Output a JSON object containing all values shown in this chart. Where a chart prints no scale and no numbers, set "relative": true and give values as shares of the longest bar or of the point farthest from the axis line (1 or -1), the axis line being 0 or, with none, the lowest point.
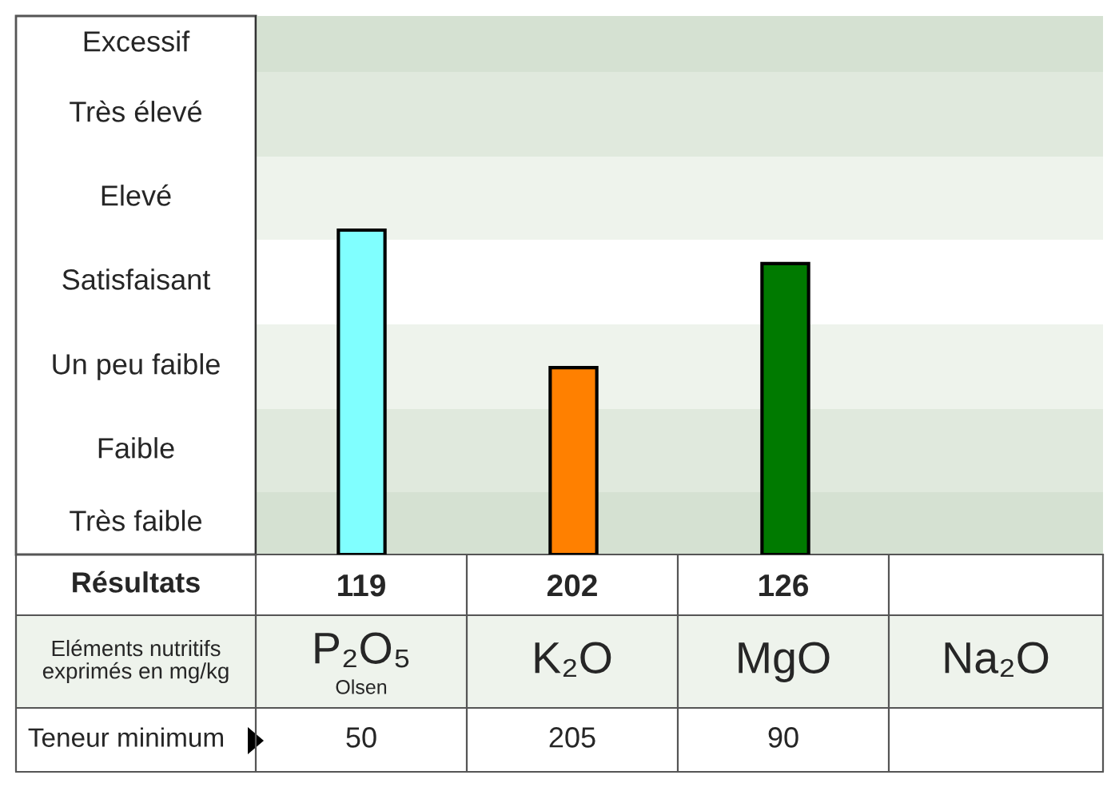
{
  "chart_data": {
    "type": "bar",
    "relative": true,
    "categories": [
      "P₂O₅",
      "K₂O",
      "MgO",
      "Na₂O"
    ],
    "values": [
      1,
      0.576,
      0.897,
      null
    ],
    "colors": [
      "#80ffff",
      "#ff8000",
      "#007a00",
      "#808080"
    ],
    "xlabel": "Eléments nutritifs\nexprimés en mg/kg",
    "annotations": [
      "Excessif",
      "Très élevé",
      "Elevé",
      "Satisfaisant",
      "Un peu faible",
      "Faible",
      "Très faible",
      "Résultats",
      "119",
      "202",
      "126",
      "Teneur minimum",
      "Olsen",
      "50",
      "205",
      "90"
    ]
  }
}
